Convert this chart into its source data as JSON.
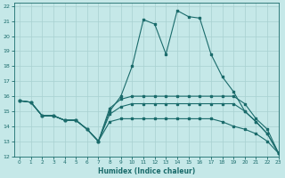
{
  "xlabel": "Humidex (Indice chaleur)",
  "xlim": [
    -0.5,
    23
  ],
  "ylim": [
    12,
    22.2
  ],
  "xticks": [
    0,
    1,
    2,
    3,
    4,
    5,
    6,
    7,
    8,
    9,
    10,
    11,
    12,
    13,
    14,
    15,
    16,
    17,
    18,
    19,
    20,
    21,
    22,
    23
  ],
  "yticks": [
    12,
    13,
    14,
    15,
    16,
    17,
    18,
    19,
    20,
    21,
    22
  ],
  "bg_color": "#c5e8e8",
  "grid_color": "#a8d0d0",
  "line_color": "#1a6b6b",
  "lines": [
    {
      "x": [
        0,
        1,
        2,
        3,
        4,
        5,
        6,
        7,
        8,
        9,
        10,
        11,
        12,
        13,
        14,
        15,
        16,
        17,
        18,
        19,
        20,
        21,
        22,
        23
      ],
      "y": [
        15.7,
        15.6,
        14.7,
        14.7,
        14.4,
        14.4,
        13.8,
        13.0,
        15.0,
        16.0,
        18.0,
        21.1,
        20.8,
        18.8,
        21.7,
        21.3,
        21.2,
        18.8,
        17.3,
        16.3,
        15.0,
        14.3,
        13.5,
        12.2
      ]
    },
    {
      "x": [
        0,
        1,
        2,
        3,
        4,
        5,
        6,
        7,
        8,
        9,
        10,
        11,
        12,
        13,
        14,
        15,
        16,
        17,
        18,
        19,
        20,
        21,
        22,
        23
      ],
      "y": [
        15.7,
        15.6,
        14.7,
        14.7,
        14.4,
        14.4,
        13.8,
        13.0,
        15.2,
        15.8,
        16.0,
        16.0,
        16.0,
        16.0,
        16.0,
        16.0,
        16.0,
        16.0,
        16.0,
        16.0,
        15.5,
        14.5,
        13.8,
        12.2
      ]
    },
    {
      "x": [
        0,
        1,
        2,
        3,
        4,
        5,
        6,
        7,
        8,
        9,
        10,
        11,
        12,
        13,
        14,
        15,
        16,
        17,
        18,
        19,
        20,
        21,
        22,
        23
      ],
      "y": [
        15.7,
        15.6,
        14.7,
        14.7,
        14.4,
        14.4,
        13.8,
        13.0,
        14.8,
        15.3,
        15.5,
        15.5,
        15.5,
        15.5,
        15.5,
        15.5,
        15.5,
        15.5,
        15.5,
        15.5,
        15.0,
        14.3,
        13.5,
        12.2
      ]
    },
    {
      "x": [
        0,
        1,
        2,
        3,
        4,
        5,
        6,
        7,
        8,
        9,
        10,
        11,
        12,
        13,
        14,
        15,
        16,
        17,
        18,
        19,
        20,
        21,
        22,
        23
      ],
      "y": [
        15.7,
        15.6,
        14.7,
        14.7,
        14.4,
        14.4,
        13.8,
        13.0,
        14.3,
        14.5,
        14.5,
        14.5,
        14.5,
        14.5,
        14.5,
        14.5,
        14.5,
        14.5,
        14.3,
        14.0,
        13.8,
        13.5,
        13.0,
        12.2
      ]
    }
  ]
}
